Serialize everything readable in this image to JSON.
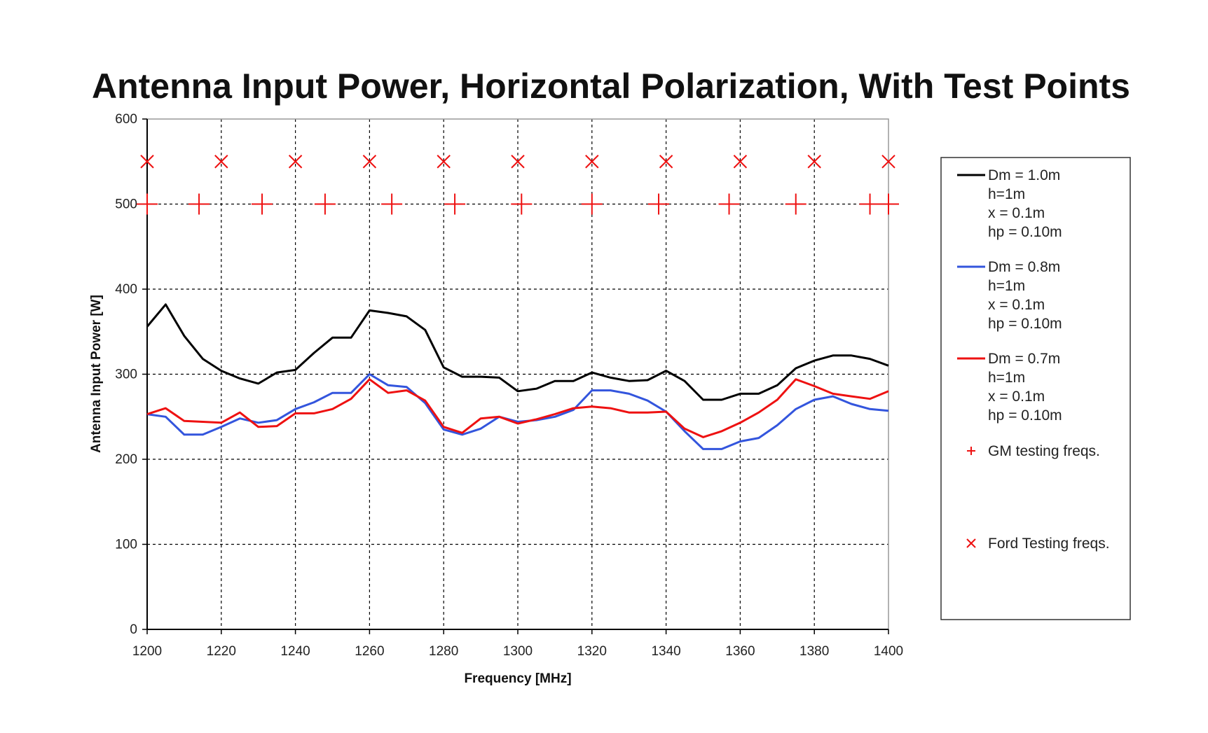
{
  "chart_data": {
    "type": "line",
    "title": "Antenna Input Power, Horizontal Polarization, With Test Points",
    "xlabel": "Frequency [MHz]",
    "ylabel": "Antenna Input Power [W]",
    "xlim": [
      1200,
      1400
    ],
    "ylim": [
      0,
      600
    ],
    "x_ticks": [
      1200,
      1220,
      1240,
      1260,
      1280,
      1300,
      1320,
      1340,
      1360,
      1380,
      1400
    ],
    "y_ticks": [
      0,
      100,
      200,
      300,
      400,
      500,
      600
    ],
    "x_tick_labels": [
      "1200",
      "1220",
      "1240",
      "1260",
      "1280",
      "1300",
      "1320",
      "1340",
      "1360",
      "1380",
      "1400"
    ],
    "y_tick_labels": [
      "0",
      "100",
      "200",
      "300",
      "400",
      "500",
      "600"
    ],
    "grid": true,
    "legend_position": "right",
    "series": [
      {
        "name": "Dm = 1.0m",
        "legend_lines": [
          "Dm = 1.0m",
          "h=1m",
          "x = 0.1m",
          "hp = 0.10m"
        ],
        "color": "#000000",
        "marker": "line",
        "x": [
          1200,
          1205,
          1210,
          1215,
          1220,
          1225,
          1230,
          1235,
          1240,
          1245,
          1250,
          1255,
          1260,
          1265,
          1270,
          1275,
          1280,
          1285,
          1290,
          1295,
          1300,
          1305,
          1310,
          1315,
          1320,
          1325,
          1330,
          1335,
          1340,
          1345,
          1350,
          1355,
          1360,
          1365,
          1370,
          1375,
          1380,
          1385,
          1390,
          1395,
          1400
        ],
        "y": [
          356,
          382,
          345,
          318,
          304,
          295,
          289,
          302,
          305,
          325,
          343,
          343,
          375,
          372,
          368,
          352,
          308,
          297,
          297,
          296,
          280,
          283,
          292,
          292,
          302,
          296,
          292,
          293,
          304,
          292,
          270,
          270,
          277,
          277,
          287,
          307,
          316,
          322,
          322,
          318,
          310
        ]
      },
      {
        "name": "Dm = 0.8m",
        "legend_lines": [
          "Dm = 0.8m",
          "h=1m",
          "x = 0.1m",
          "hp = 0.10m"
        ],
        "color": "#3355dd",
        "marker": "line",
        "x": [
          1200,
          1205,
          1210,
          1215,
          1220,
          1225,
          1230,
          1235,
          1240,
          1245,
          1250,
          1255,
          1260,
          1265,
          1270,
          1275,
          1280,
          1285,
          1290,
          1295,
          1300,
          1305,
          1310,
          1315,
          1320,
          1325,
          1330,
          1335,
          1340,
          1345,
          1350,
          1355,
          1360,
          1365,
          1370,
          1375,
          1380,
          1385,
          1390,
          1395,
          1400
        ],
        "y": [
          253,
          250,
          229,
          229,
          238,
          248,
          243,
          246,
          259,
          267,
          278,
          278,
          300,
          287,
          285,
          266,
          235,
          229,
          236,
          250,
          244,
          246,
          250,
          258,
          281,
          281,
          277,
          269,
          256,
          233,
          212,
          212,
          221,
          225,
          240,
          259,
          270,
          274,
          265,
          259,
          257
        ]
      },
      {
        "name": "Dm = 0.7m",
        "legend_lines": [
          "Dm = 0.7m",
          "h=1m",
          "x = 0.1m",
          "hp = 0.10m"
        ],
        "color": "#ee1111",
        "marker": "line",
        "x": [
          1200,
          1205,
          1210,
          1215,
          1220,
          1225,
          1230,
          1235,
          1240,
          1245,
          1250,
          1255,
          1260,
          1265,
          1270,
          1275,
          1280,
          1285,
          1290,
          1295,
          1300,
          1305,
          1310,
          1315,
          1320,
          1325,
          1330,
          1335,
          1340,
          1345,
          1350,
          1355,
          1360,
          1365,
          1370,
          1375,
          1380,
          1385,
          1390,
          1395,
          1400
        ],
        "y": [
          253,
          260,
          245,
          244,
          243,
          255,
          238,
          239,
          254,
          254,
          259,
          271,
          294,
          278,
          281,
          269,
          238,
          231,
          248,
          250,
          242,
          247,
          253,
          260,
          262,
          260,
          255,
          255,
          256,
          236,
          226,
          233,
          243,
          255,
          270,
          294,
          286,
          277,
          274,
          271,
          280
        ]
      },
      {
        "name": "GM testing freqs.",
        "color": "#ee1111",
        "marker": "plus",
        "x": [
          1200,
          1214,
          1231,
          1248,
          1266,
          1283,
          1301,
          1320,
          1338,
          1357,
          1375,
          1395,
          1400
        ],
        "y": [
          500,
          500,
          500,
          500,
          500,
          500,
          500,
          500,
          500,
          500,
          500,
          500,
          500
        ]
      },
      {
        "name": "Ford Testing freqs.",
        "color": "#ee1111",
        "marker": "x",
        "x": [
          1200,
          1220,
          1240,
          1260,
          1280,
          1300,
          1320,
          1340,
          1360,
          1380,
          1400
        ],
        "y": [
          550,
          550,
          550,
          550,
          550,
          550,
          550,
          550,
          550,
          550,
          550
        ]
      }
    ]
  }
}
